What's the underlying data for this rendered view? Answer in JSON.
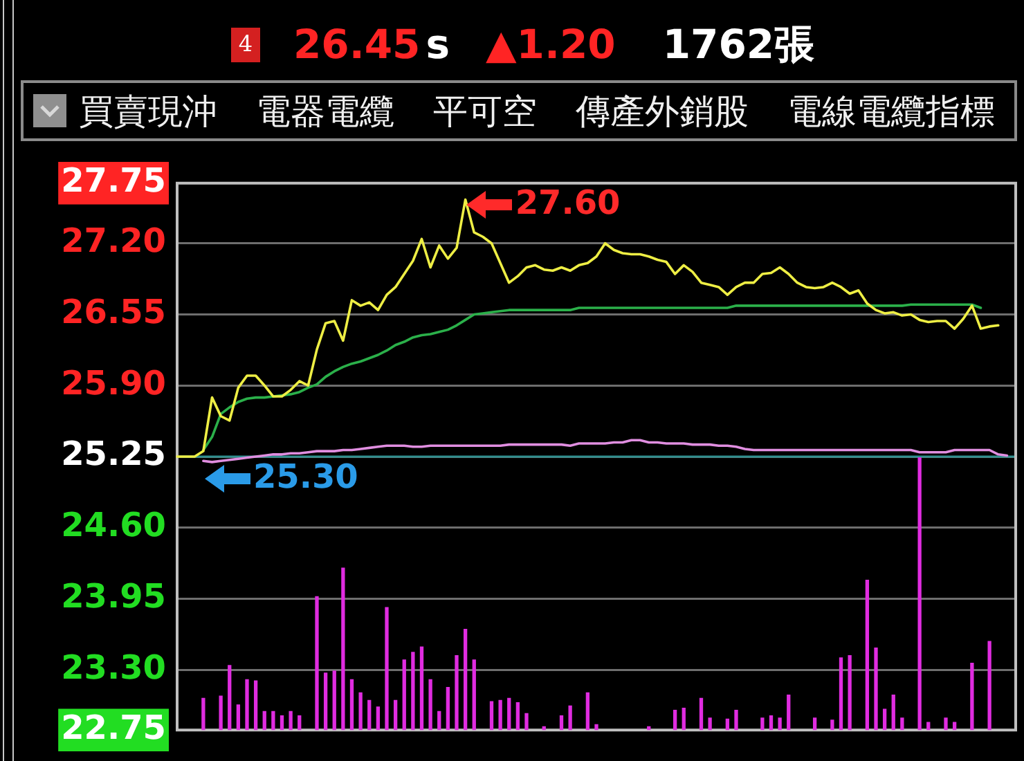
{
  "chart_data": {
    "type": "line",
    "categories": [
      null,
      null,
      null,
      null,
      null,
      null,
      null,
      null,
      null,
      null,
      null,
      null,
      null,
      null,
      null,
      null,
      null,
      null,
      null,
      null,
      null,
      null,
      null,
      null,
      null,
      null,
      null,
      null,
      null,
      null,
      null,
      null,
      null,
      null,
      null,
      null,
      null,
      null,
      null,
      null,
      null,
      null,
      null,
      null,
      null,
      null,
      null,
      null,
      null,
      null,
      null,
      null,
      null,
      null,
      null,
      null,
      null,
      null,
      null,
      null,
      null,
      null,
      null,
      null,
      null,
      null,
      null,
      null,
      null,
      null,
      null,
      null,
      null,
      null,
      null,
      null,
      null,
      null,
      null,
      null,
      null,
      null,
      null,
      null,
      null,
      null,
      null,
      null,
      null,
      null,
      null,
      null,
      null,
      null,
      null,
      null,
      null
    ],
    "series": [
      {
        "color": "#eeee44",
        "values": [
          25.25,
          25.25,
          25.25,
          25.3,
          25.79,
          25.62,
          25.58,
          25.88,
          25.99,
          25.99,
          25.9,
          25.8,
          25.8,
          25.86,
          25.94,
          25.9,
          26.23,
          26.47,
          26.49,
          26.31,
          26.68,
          26.63,
          26.66,
          26.59,
          26.73,
          26.8,
          26.92,
          27.04,
          27.24,
          26.98,
          27.18,
          27.06,
          27.16,
          27.6,
          27.3,
          27.26,
          27.2,
          27.02,
          26.84,
          26.9,
          26.98,
          27,
          26.96,
          26.95,
          26.98,
          26.95,
          27,
          27.02,
          27.08,
          27.2,
          27.14,
          27.11,
          27.1,
          27.1,
          27.08,
          27.05,
          27.03,
          26.92,
          27,
          26.94,
          26.84,
          26.82,
          26.8,
          26.73,
          26.8,
          26.84,
          26.84,
          26.92,
          26.93,
          26.98,
          26.92,
          26.84,
          26.8,
          26.79,
          26.8,
          26.84,
          26.8,
          26.74,
          26.77,
          26.65,
          26.59,
          26.56,
          26.57,
          26.54,
          26.55,
          26.5,
          26.48,
          26.49,
          26.49,
          26.42,
          26.51,
          26.63,
          26.42,
          26.44,
          26.45,
          null,
          null
        ],
        "value_labels": [
          null,
          null,
          null,
          null,
          null,
          null,
          null,
          null,
          null,
          null,
          null,
          null,
          null,
          null,
          null,
          null,
          null,
          null,
          null,
          null,
          null,
          null,
          null,
          null,
          null,
          null,
          null,
          null,
          null,
          null,
          null,
          null,
          null,
          "27.60",
          null,
          null,
          null,
          null,
          null,
          null,
          null,
          null,
          null,
          null,
          null,
          null,
          null,
          null,
          null,
          null,
          null,
          null,
          null,
          null,
          null,
          null,
          null,
          null,
          null,
          null,
          null,
          null,
          null,
          null,
          null,
          null,
          null,
          null,
          null,
          null,
          null,
          null,
          null,
          null,
          null,
          null,
          null,
          null,
          null,
          null,
          null,
          null,
          null,
          null,
          null,
          null,
          null,
          null,
          null,
          null,
          null,
          null,
          null,
          null,
          null,
          null,
          null
        ]
      },
      {
        "color": "#2bb04a",
        "values": [
          null,
          null,
          null,
          25.31,
          25.43,
          25.64,
          25.7,
          25.75,
          25.78,
          25.79,
          25.79,
          25.8,
          25.81,
          25.82,
          25.84,
          25.88,
          25.91,
          25.98,
          26.03,
          26.07,
          26.1,
          26.12,
          26.15,
          26.18,
          26.22,
          26.27,
          26.3,
          26.34,
          26.36,
          26.37,
          26.39,
          26.41,
          26.45,
          26.5,
          26.55,
          26.56,
          26.57,
          26.58,
          26.59,
          26.59,
          26.59,
          26.59,
          26.59,
          26.59,
          26.59,
          26.59,
          26.61,
          26.61,
          26.61,
          26.61,
          26.61,
          26.61,
          26.61,
          26.61,
          26.61,
          26.61,
          26.61,
          26.61,
          26.61,
          26.61,
          26.61,
          26.61,
          26.61,
          26.61,
          26.63,
          26.63,
          26.63,
          26.63,
          26.63,
          26.63,
          26.63,
          26.63,
          26.63,
          26.63,
          26.63,
          26.63,
          26.63,
          26.63,
          26.63,
          26.63,
          26.63,
          26.63,
          26.63,
          26.63,
          26.64,
          26.64,
          26.64,
          26.64,
          26.64,
          26.64,
          26.64,
          26.64,
          26.61,
          null,
          null,
          null,
          null
        ]
      },
      {
        "color": "#e08ee0",
        "values": [
          null,
          null,
          null,
          25.21,
          25.2,
          25.21,
          25.22,
          25.23,
          25.24,
          25.25,
          25.26,
          25.27,
          25.27,
          25.28,
          25.28,
          25.29,
          25.3,
          25.3,
          25.3,
          25.31,
          25.31,
          25.32,
          25.33,
          25.34,
          25.35,
          25.35,
          25.35,
          25.34,
          25.34,
          25.35,
          25.35,
          25.35,
          25.35,
          25.35,
          25.35,
          25.35,
          25.35,
          25.35,
          25.36,
          25.36,
          25.36,
          25.36,
          25.36,
          25.36,
          25.36,
          25.35,
          25.37,
          25.37,
          25.37,
          25.37,
          25.38,
          25.38,
          25.4,
          25.4,
          25.38,
          25.38,
          25.37,
          25.37,
          25.37,
          25.36,
          25.36,
          25.36,
          25.35,
          25.35,
          25.34,
          25.32,
          25.31,
          25.31,
          25.31,
          25.31,
          25.31,
          25.31,
          25.31,
          25.31,
          25.31,
          25.31,
          25.31,
          25.31,
          25.31,
          25.31,
          25.31,
          25.31,
          25.31,
          25.31,
          25.31,
          25.29,
          25.29,
          25.29,
          25.29,
          25.31,
          25.31,
          25.31,
          25.31,
          25.31,
          25.27,
          25.26,
          null
        ]
      },
      {
        "type": "bar",
        "color": "#e02ce0",
        "values": [
          null,
          null,
          null,
          23.04,
          null,
          23.06,
          23.34,
          22.98,
          23.21,
          23.2,
          22.92,
          22.92,
          22.88,
          22.92,
          22.88,
          null,
          23.97,
          23.27,
          23.29,
          24.23,
          23.21,
          23.09,
          23.02,
          22.96,
          23.87,
          23.02,
          23.39,
          23.46,
          23.51,
          23.21,
          22.92,
          23.14,
          23.43,
          23.67,
          23.39,
          null,
          23.01,
          23.02,
          23.04,
          23,
          22.9,
          null,
          22.78,
          null,
          22.88,
          22.97,
          null,
          23.09,
          22.8,
          null,
          null,
          null,
          null,
          null,
          22.78,
          null,
          null,
          22.93,
          22.95,
          null,
          23.04,
          22.86,
          null,
          22.85,
          22.93,
          null,
          null,
          22.86,
          22.88,
          22.86,
          23.07,
          null,
          null,
          22.86,
          null,
          22.84,
          23.41,
          23.43,
          null,
          24.12,
          23.5,
          22.94,
          23.07,
          22.86,
          null,
          25.24,
          22.82,
          null,
          22.86,
          22.82,
          null,
          23.36,
          null,
          23.56,
          null,
          null,
          null
        ]
      }
    ],
    "ylim": [
      22.75,
      27.75
    ],
    "yticks": [
      22.75,
      {
        "value": 23.3,
        "label": "23.30"
      },
      23.95,
      {
        "value": 24.6,
        "label": "24.60"
      },
      25.25,
      {
        "value": 25.9,
        "label": "25.90"
      },
      26.55,
      {
        "value": 27.2,
        "label": "27.20"
      },
      27.75
    ],
    "tick_labels": "y",
    "grid": "y",
    "ref_lines": [
      {
        "axis": "y",
        "value": 25.25,
        "color": "#2f8f8f"
      }
    ],
    "annotations": [
      {
        "text": "25.30",
        "y": 25.3
      },
      "4",
      "26.45",
      "s",
      "▲1.20",
      "1762張",
      "買賣現沖",
      "電器電纜",
      "平可空",
      "傳產外銷股",
      "電線電纜指標"
    ]
  }
}
